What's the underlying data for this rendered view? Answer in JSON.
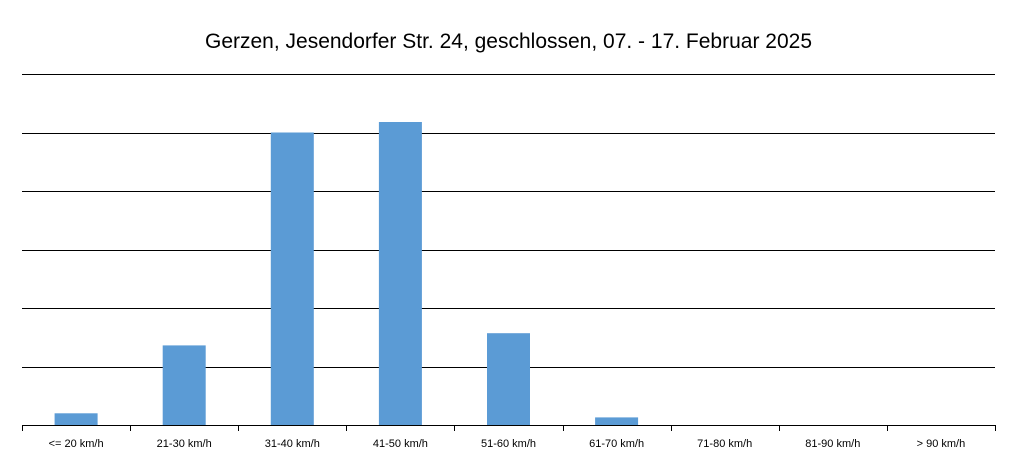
{
  "chart_data": {
    "type": "bar",
    "title": "Gerzen, Jesendorfer Str. 24, geschlossen, 07. - 17. Februar 2025",
    "xlabel": "",
    "ylabel": "",
    "categories": [
      "<= 20 km/h",
      "21-30 km/h",
      "31-40 km/h",
      "41-50 km/h",
      "51-60 km/h",
      "61-70 km/h",
      "71-80 km/h",
      "81-90 km/h",
      "> 90 km/h"
    ],
    "values": [
      0.2,
      1.36,
      5.0,
      5.18,
      1.57,
      0.13,
      0,
      0,
      0
    ],
    "ylim": [
      0,
      6
    ],
    "y_gridlines": [
      0,
      1,
      2,
      3,
      4,
      5,
      6
    ],
    "grid": true,
    "legend": "none",
    "colors": {
      "bar": "#5B9BD5",
      "grid": "#000000",
      "text": "#000000"
    }
  }
}
